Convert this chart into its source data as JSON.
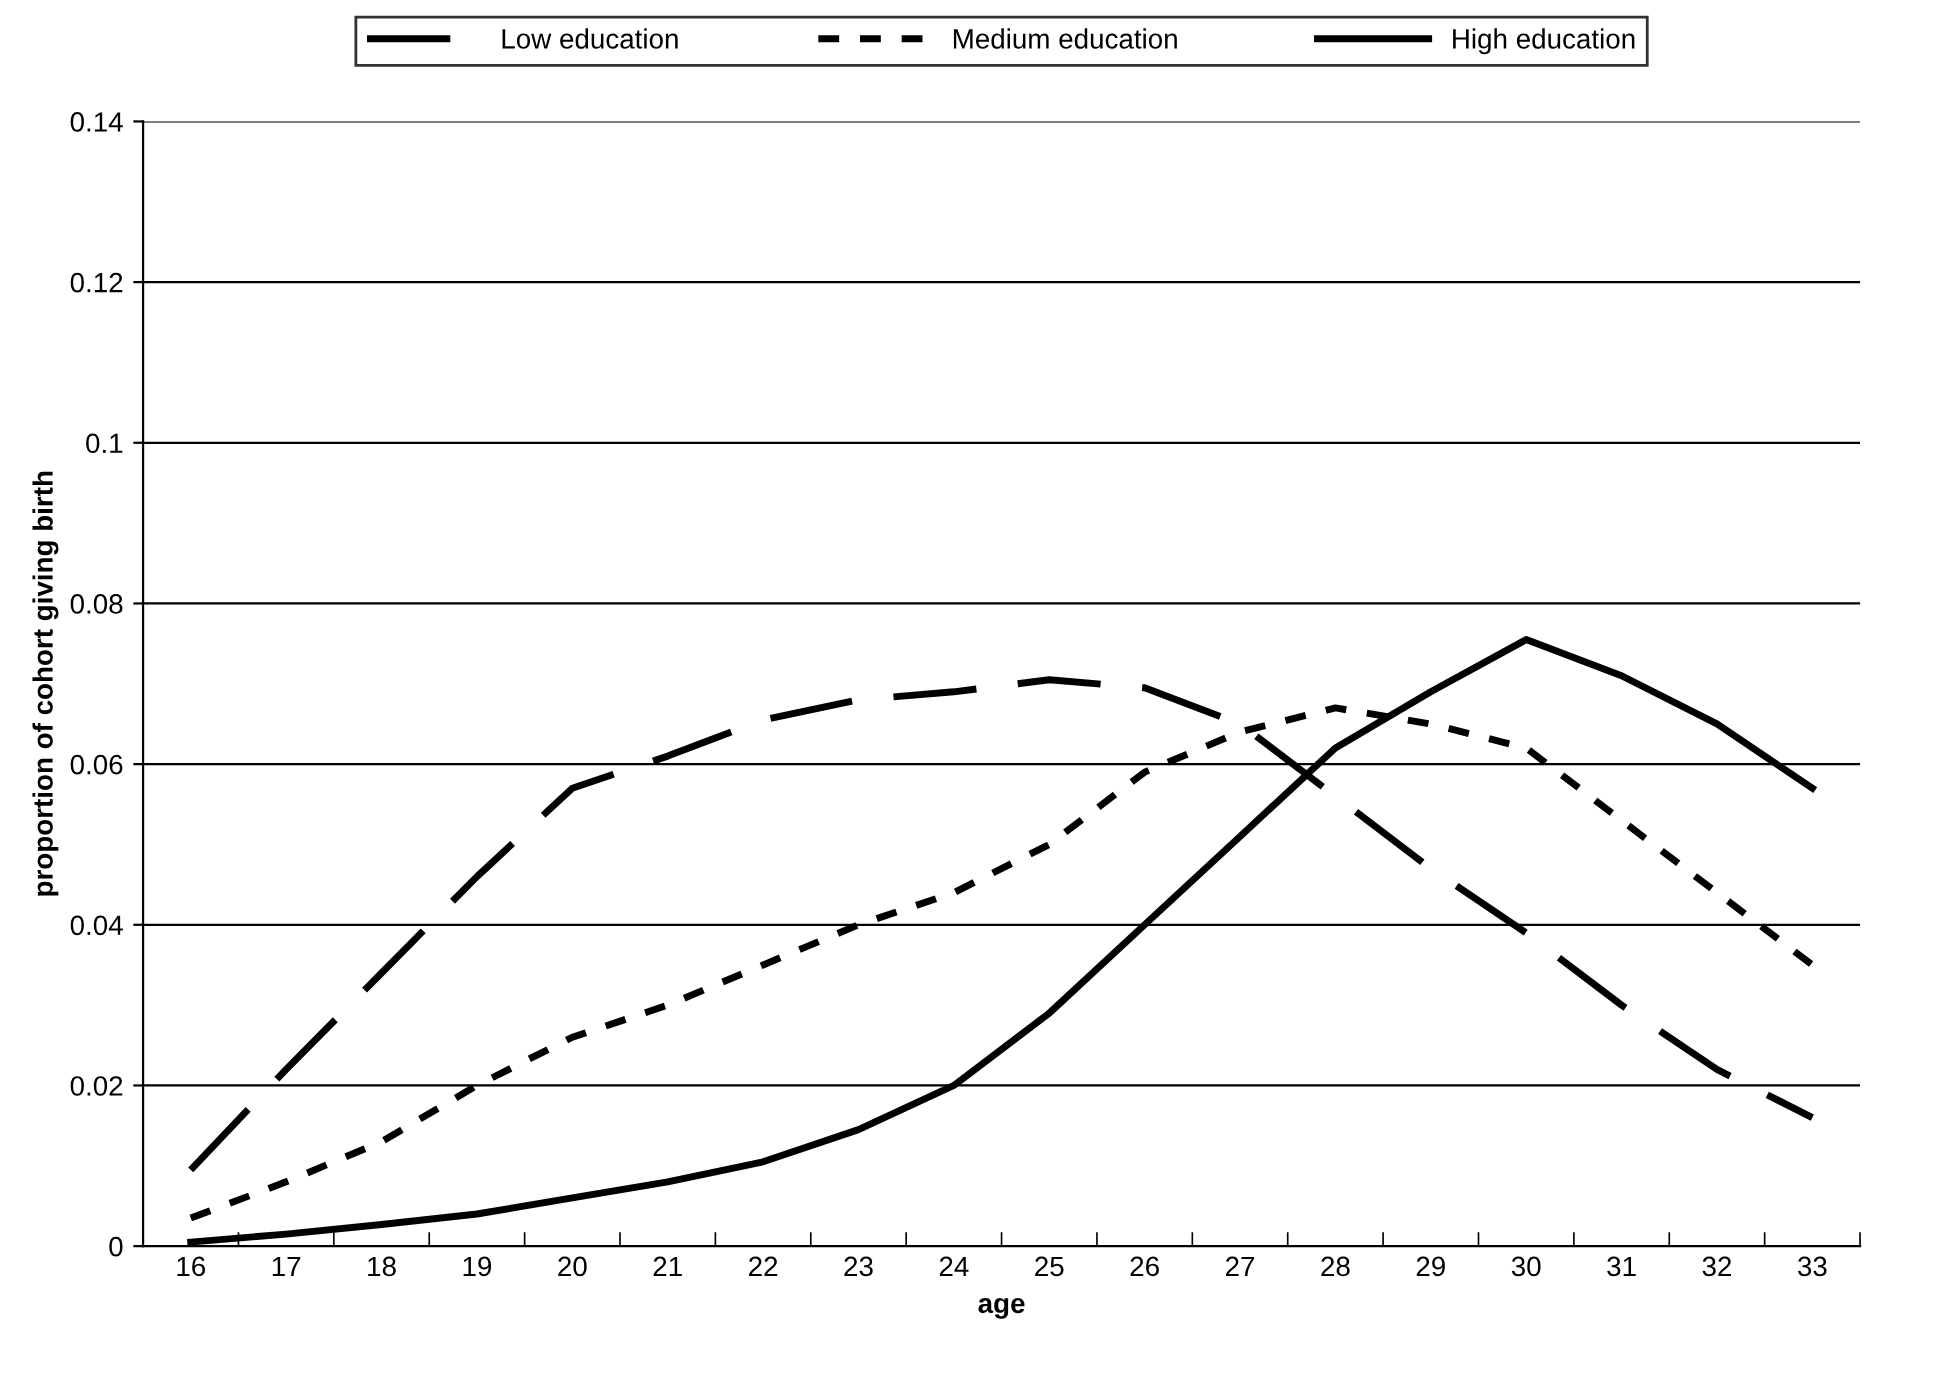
{
  "chart_data": {
    "type": "line",
    "xlabel": "age",
    "ylabel": "proportion of cohort giving birth",
    "categories": [
      "16",
      "17",
      "18",
      "19",
      "20",
      "21",
      "22",
      "23",
      "24",
      "25",
      "26",
      "27",
      "28",
      "29",
      "30",
      "31",
      "32",
      "33"
    ],
    "series": [
      {
        "name": "Low education",
        "color": "#000000",
        "line_style": "dashed",
        "values": [
          0.0095,
          0.022,
          0.034,
          0.046,
          0.057,
          0.061,
          0.0655,
          0.068,
          0.069,
          0.0705,
          0.0695,
          0.065,
          0.056,
          0.047,
          0.039,
          0.03,
          0.022,
          0.016
        ]
      },
      {
        "name": "Medium education",
        "color": "#000000",
        "line_style": "dotted",
        "values": [
          0.0035,
          0.008,
          0.013,
          0.02,
          0.026,
          0.03,
          0.035,
          0.04,
          0.044,
          0.05,
          0.059,
          0.064,
          0.067,
          0.065,
          0.062,
          0.053,
          0.044,
          0.035
        ]
      },
      {
        "name": "High education",
        "color": "#000000",
        "line_style": "solid",
        "values": [
          0.0005,
          0.0015,
          0.0027,
          0.004,
          0.006,
          0.008,
          0.0105,
          0.0145,
          0.02,
          0.029,
          0.04,
          0.051,
          0.062,
          0.069,
          0.0755,
          0.071,
          0.065,
          0.057
        ]
      }
    ],
    "ylim": [
      0,
      0.14
    ],
    "yticks": [
      0,
      0.02,
      0.04,
      0.06,
      0.08,
      0.1,
      0.12,
      0.14
    ],
    "grid": "y",
    "legend": "top",
    "marker": "none"
  }
}
